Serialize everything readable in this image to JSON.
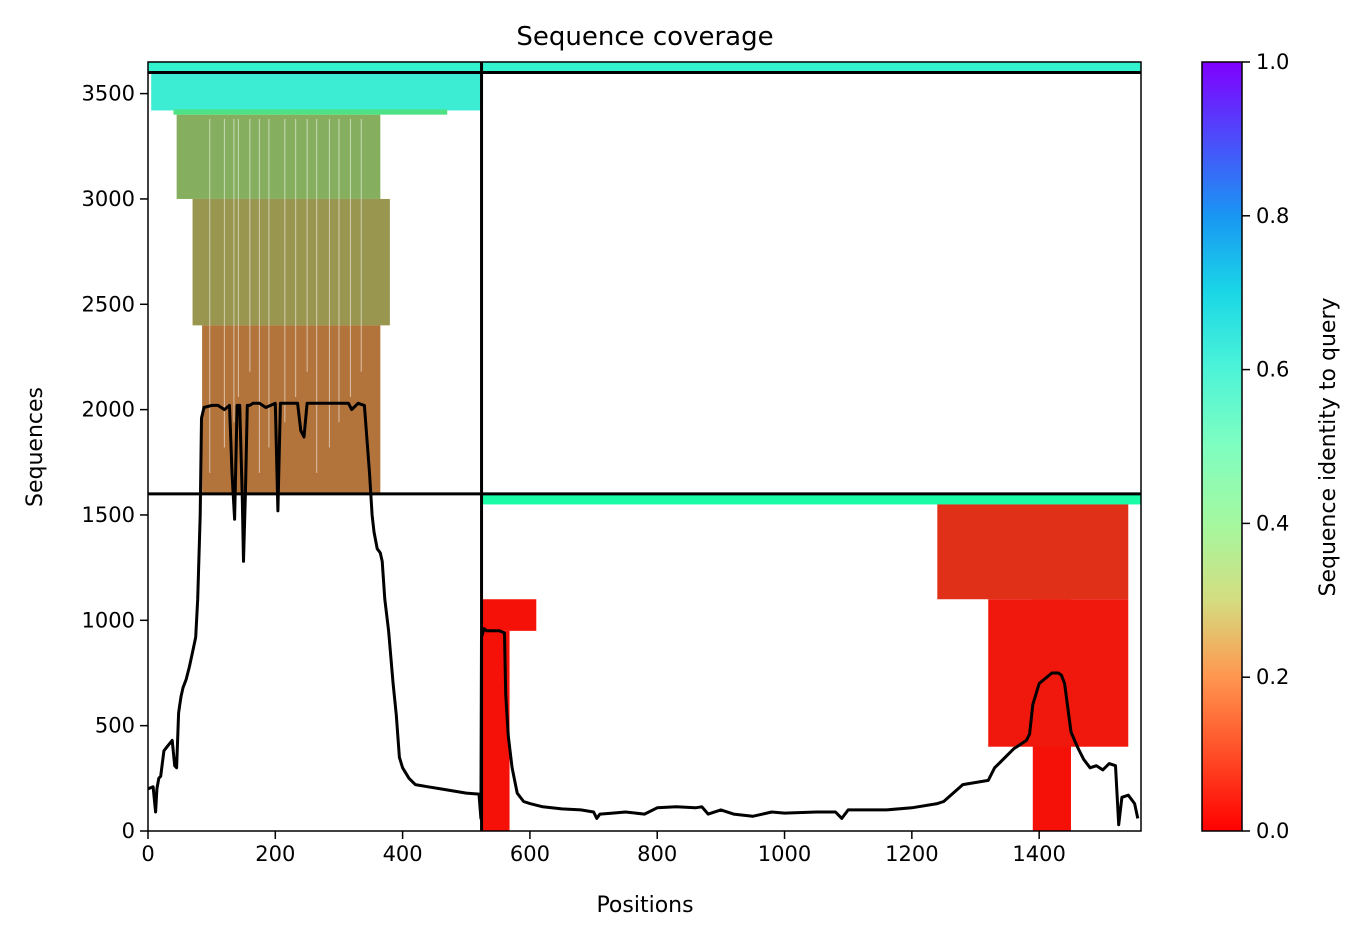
{
  "chart_data": {
    "type": "heatmap",
    "title": "Sequence coverage",
    "xlabel": "Positions",
    "ylabel": "Sequences",
    "xlim": [
      0,
      1560
    ],
    "ylim": [
      0,
      3650
    ],
    "xticks": [
      0,
      200,
      400,
      600,
      800,
      1000,
      1200,
      1400
    ],
    "yticks": [
      0,
      500,
      1000,
      1500,
      2000,
      2500,
      3000,
      3500
    ],
    "grid": false,
    "legend": "none",
    "colorbar": {
      "label": "Sequence identity to query",
      "range": [
        0,
        1
      ],
      "ticks": [
        0.0,
        0.2,
        0.4,
        0.6,
        0.8,
        1.0
      ],
      "tick_labels": [
        "0.0",
        "0.2",
        "0.4",
        "0.6",
        "0.8",
        "1.0"
      ],
      "colormap": "rainbow_r"
    },
    "boundaries": {
      "vertical_x": [
        524
      ],
      "horizontal_y": [
        1600,
        3600
      ]
    },
    "coverage_blocks": [
      {
        "name": "chain-a-paired",
        "x": [
          0,
          524
        ],
        "y": [
          3600,
          3650
        ],
        "identity": 0.6
      },
      {
        "name": "chain-b-paired",
        "x": [
          524,
          1560
        ],
        "y": [
          3600,
          3650
        ],
        "identity": 0.6
      },
      {
        "name": "chain-a-high-identity",
        "x": [
          5,
          524
        ],
        "y": [
          3420,
          3600
        ],
        "identity": 0.62
      },
      {
        "name": "chain-a-mid-identity",
        "x": [
          40,
          470
        ],
        "y": [
          3400,
          3425
        ],
        "identity": 0.35
      },
      {
        "name": "chain-a-upper",
        "x": [
          45,
          365
        ],
        "y": [
          3000,
          3400
        ],
        "identity": 0.24
      },
      {
        "name": "chain-a-middle",
        "x": [
          70,
          380
        ],
        "y": [
          2400,
          3000
        ],
        "identity": 0.2
      },
      {
        "name": "chain-a-lower",
        "x": [
          85,
          365
        ],
        "y": [
          1600,
          2400
        ],
        "identity": 0.15
      },
      {
        "name": "chain-b-high-identity",
        "x": [
          524,
          1560
        ],
        "y": [
          1550,
          1600
        ],
        "identity": 0.45
      },
      {
        "name": "chain-b-c-term-domain",
        "x": [
          1240,
          1540
        ],
        "y": [
          1100,
          1550
        ],
        "identity": 0.06
      },
      {
        "name": "chain-b-n-term-dense",
        "x": [
          524,
          568
        ],
        "y": [
          0,
          950
        ],
        "identity": 0.02
      },
      {
        "name": "chain-b-n-term-sparse",
        "x": [
          524,
          610
        ],
        "y": [
          950,
          1100
        ],
        "identity": 0.02
      },
      {
        "name": "chain-b-c-term-dense",
        "x": [
          1390,
          1450
        ],
        "y": [
          0,
          1100
        ],
        "identity": 0.02
      },
      {
        "name": "chain-b-c-term-sparse",
        "x": [
          1320,
          1540
        ],
        "y": [
          400,
          1100
        ],
        "identity": 0.03
      }
    ],
    "coverage_line": {
      "x": [
        0,
        8,
        12,
        14,
        17,
        20,
        25,
        30,
        38,
        42,
        45,
        48,
        50,
        52,
        55,
        60,
        65,
        70,
        75,
        78,
        82,
        84,
        88,
        100,
        110,
        120,
        128,
        132,
        136,
        140,
        144,
        148,
        150,
        153,
        156,
        160,
        165,
        175,
        185,
        200,
        204,
        208,
        220,
        235,
        240,
        245,
        250,
        270,
        290,
        300,
        315,
        320,
        330,
        340,
        343,
        348,
        350,
        352,
        355,
        360,
        365,
        368,
        372,
        378,
        385,
        390,
        395,
        400,
        410,
        420,
        440,
        460,
        480,
        500,
        520,
        523,
        524,
        528,
        532,
        540,
        552,
        560,
        562,
        566,
        572,
        580,
        590,
        600,
        620,
        650,
        680,
        700,
        705,
        710,
        730,
        750,
        780,
        800,
        830,
        860,
        870,
        880,
        900,
        920,
        950,
        980,
        1000,
        1050,
        1080,
        1090,
        1100,
        1130,
        1160,
        1200,
        1240,
        1250,
        1280,
        1300,
        1320,
        1330,
        1340,
        1360,
        1370,
        1380,
        1385,
        1390,
        1400,
        1420,
        1430,
        1435,
        1440,
        1450,
        1460,
        1470,
        1480,
        1490,
        1500,
        1510,
        1520,
        1525,
        1530,
        1540,
        1550,
        1555
      ],
      "y": [
        200,
        210,
        90,
        200,
        250,
        260,
        380,
        400,
        430,
        310,
        300,
        560,
        600,
        640,
        680,
        720,
        780,
        850,
        920,
        1100,
        1500,
        1960,
        2010,
        2020,
        2020,
        2000,
        2020,
        1700,
        1480,
        2020,
        2020,
        1600,
        1280,
        1600,
        2020,
        2020,
        2030,
        2030,
        2010,
        2030,
        1520,
        2030,
        2030,
        2030,
        1900,
        1870,
        2030,
        2030,
        2030,
        2030,
        2030,
        2000,
        2030,
        2020,
        1900,
        1700,
        1600,
        1500,
        1420,
        1340,
        1320,
        1280,
        1100,
        950,
        700,
        550,
        350,
        300,
        250,
        220,
        210,
        200,
        190,
        180,
        175,
        60,
        920,
        960,
        950,
        950,
        950,
        940,
        650,
        450,
        300,
        180,
        140,
        130,
        115,
        105,
        100,
        90,
        60,
        80,
        85,
        90,
        80,
        110,
        115,
        110,
        115,
        80,
        100,
        80,
        70,
        90,
        85,
        90,
        90,
        60,
        100,
        100,
        100,
        110,
        130,
        140,
        220,
        230,
        240,
        300,
        330,
        390,
        410,
        430,
        460,
        600,
        700,
        750,
        750,
        740,
        700,
        470,
        400,
        340,
        300,
        310,
        290,
        320,
        310,
        30,
        160,
        170,
        130,
        60
      ]
    }
  }
}
